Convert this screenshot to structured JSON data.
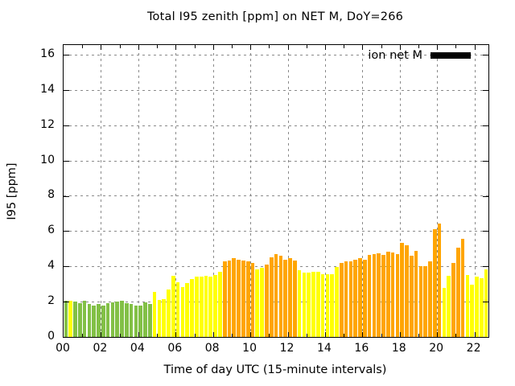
{
  "title": "Total I95 zenith [ppm] on NET M, DoY=266",
  "y_axis": {
    "label": "I95 [ppm]",
    "tick_labels": [
      "0",
      "2",
      "4",
      "6",
      "8",
      "10",
      "12",
      "14",
      "16"
    ]
  },
  "x_axis": {
    "label": "Time of day UTC (15-minute intervals)",
    "tick_labels": [
      "00",
      "02",
      "04",
      "06",
      "08",
      "10",
      "12",
      "14",
      "16",
      "18",
      "20",
      "22"
    ]
  },
  "legend": {
    "label": "ion net M",
    "swatch_color": "#000000",
    "position": "top-right"
  },
  "colors": {
    "green": "#82C046",
    "yellow": "#FFFF00",
    "orange": "#FFA500",
    "grid": "#8A8A8A",
    "frame": "#000000",
    "background": "#FFFFFF"
  },
  "chart_data": {
    "type": "bar",
    "title": "Total I95 zenith [ppm] on NET M, DoY=266",
    "xlabel": "Time of day UTC (15-minute intervals)",
    "ylabel": "I95 [ppm]",
    "ylim": [
      0,
      16.55
    ],
    "ytick_step": 2,
    "xtick_hours": [
      0,
      2,
      4,
      6,
      8,
      10,
      12,
      14,
      16,
      18,
      20,
      22
    ],
    "interval_minutes": 15,
    "grid": true,
    "legend_entries": [
      "ion net M"
    ],
    "points": [
      {
        "t": "00:00",
        "v": 2.05,
        "c": "green"
      },
      {
        "t": "00:15",
        "v": 2.05,
        "c": "yellow"
      },
      {
        "t": "00:30",
        "v": 2.0,
        "c": "green"
      },
      {
        "t": "00:45",
        "v": 1.9,
        "c": "green"
      },
      {
        "t": "01:00",
        "v": 2.05,
        "c": "green"
      },
      {
        "t": "01:15",
        "v": 1.85,
        "c": "green"
      },
      {
        "t": "01:30",
        "v": 1.8,
        "c": "green"
      },
      {
        "t": "01:45",
        "v": 1.85,
        "c": "green"
      },
      {
        "t": "02:00",
        "v": 1.8,
        "c": "green"
      },
      {
        "t": "02:15",
        "v": 1.9,
        "c": "green"
      },
      {
        "t": "02:30",
        "v": 1.95,
        "c": "green"
      },
      {
        "t": "02:45",
        "v": 2.0,
        "c": "green"
      },
      {
        "t": "03:00",
        "v": 2.05,
        "c": "green"
      },
      {
        "t": "03:15",
        "v": 1.9,
        "c": "green"
      },
      {
        "t": "03:30",
        "v": 1.85,
        "c": "green"
      },
      {
        "t": "03:45",
        "v": 1.8,
        "c": "green"
      },
      {
        "t": "04:00",
        "v": 1.8,
        "c": "green"
      },
      {
        "t": "04:15",
        "v": 1.95,
        "c": "green"
      },
      {
        "t": "04:30",
        "v": 1.85,
        "c": "green"
      },
      {
        "t": "04:45",
        "v": 2.55,
        "c": "yellow"
      },
      {
        "t": "05:00",
        "v": 2.1,
        "c": "yellow"
      },
      {
        "t": "05:15",
        "v": 2.15,
        "c": "yellow"
      },
      {
        "t": "05:30",
        "v": 2.7,
        "c": "yellow"
      },
      {
        "t": "05:45",
        "v": 3.45,
        "c": "yellow"
      },
      {
        "t": "06:00",
        "v": 3.1,
        "c": "yellow"
      },
      {
        "t": "06:15",
        "v": 2.85,
        "c": "yellow"
      },
      {
        "t": "06:30",
        "v": 3.05,
        "c": "yellow"
      },
      {
        "t": "06:45",
        "v": 3.3,
        "c": "yellow"
      },
      {
        "t": "07:00",
        "v": 3.4,
        "c": "yellow"
      },
      {
        "t": "07:15",
        "v": 3.4,
        "c": "yellow"
      },
      {
        "t": "07:30",
        "v": 3.45,
        "c": "yellow"
      },
      {
        "t": "07:45",
        "v": 3.4,
        "c": "yellow"
      },
      {
        "t": "08:00",
        "v": 3.5,
        "c": "yellow"
      },
      {
        "t": "08:15",
        "v": 3.7,
        "c": "yellow"
      },
      {
        "t": "08:30",
        "v": 4.3,
        "c": "orange"
      },
      {
        "t": "08:45",
        "v": 4.35,
        "c": "orange"
      },
      {
        "t": "09:00",
        "v": 4.45,
        "c": "orange"
      },
      {
        "t": "09:15",
        "v": 4.4,
        "c": "orange"
      },
      {
        "t": "09:30",
        "v": 4.35,
        "c": "orange"
      },
      {
        "t": "09:45",
        "v": 4.3,
        "c": "orange"
      },
      {
        "t": "10:00",
        "v": 4.2,
        "c": "orange"
      },
      {
        "t": "10:15",
        "v": 3.85,
        "c": "yellow"
      },
      {
        "t": "10:30",
        "v": 3.9,
        "c": "yellow"
      },
      {
        "t": "10:45",
        "v": 4.1,
        "c": "orange"
      },
      {
        "t": "11:00",
        "v": 4.5,
        "c": "orange"
      },
      {
        "t": "11:15",
        "v": 4.7,
        "c": "orange"
      },
      {
        "t": "11:30",
        "v": 4.6,
        "c": "orange"
      },
      {
        "t": "11:45",
        "v": 4.4,
        "c": "orange"
      },
      {
        "t": "12:00",
        "v": 4.45,
        "c": "orange"
      },
      {
        "t": "12:15",
        "v": 4.35,
        "c": "orange"
      },
      {
        "t": "12:30",
        "v": 3.8,
        "c": "yellow"
      },
      {
        "t": "12:45",
        "v": 3.65,
        "c": "yellow"
      },
      {
        "t": "13:00",
        "v": 3.65,
        "c": "yellow"
      },
      {
        "t": "13:15",
        "v": 3.7,
        "c": "yellow"
      },
      {
        "t": "13:30",
        "v": 3.7,
        "c": "yellow"
      },
      {
        "t": "13:45",
        "v": 3.55,
        "c": "yellow"
      },
      {
        "t": "14:00",
        "v": 3.55,
        "c": "yellow"
      },
      {
        "t": "14:15",
        "v": 3.55,
        "c": "yellow"
      },
      {
        "t": "14:30",
        "v": 3.95,
        "c": "yellow"
      },
      {
        "t": "14:45",
        "v": 4.2,
        "c": "orange"
      },
      {
        "t": "15:00",
        "v": 4.3,
        "c": "orange"
      },
      {
        "t": "15:15",
        "v": 4.3,
        "c": "orange"
      },
      {
        "t": "15:30",
        "v": 4.4,
        "c": "orange"
      },
      {
        "t": "15:45",
        "v": 4.45,
        "c": "orange"
      },
      {
        "t": "16:00",
        "v": 4.4,
        "c": "orange"
      },
      {
        "t": "16:15",
        "v": 4.65,
        "c": "orange"
      },
      {
        "t": "16:30",
        "v": 4.7,
        "c": "orange"
      },
      {
        "t": "16:45",
        "v": 4.75,
        "c": "orange"
      },
      {
        "t": "17:00",
        "v": 4.65,
        "c": "orange"
      },
      {
        "t": "17:15",
        "v": 4.85,
        "c": "orange"
      },
      {
        "t": "17:30",
        "v": 4.8,
        "c": "orange"
      },
      {
        "t": "17:45",
        "v": 4.7,
        "c": "orange"
      },
      {
        "t": "18:00",
        "v": 5.35,
        "c": "orange"
      },
      {
        "t": "18:15",
        "v": 5.2,
        "c": "orange"
      },
      {
        "t": "18:30",
        "v": 4.6,
        "c": "orange"
      },
      {
        "t": "18:45",
        "v": 4.9,
        "c": "orange"
      },
      {
        "t": "19:00",
        "v": 4.0,
        "c": "orange"
      },
      {
        "t": "19:15",
        "v": 4.0,
        "c": "orange"
      },
      {
        "t": "19:30",
        "v": 4.3,
        "c": "orange"
      },
      {
        "t": "19:45",
        "v": 6.1,
        "c": "orange"
      },
      {
        "t": "20:00",
        "v": 6.45,
        "c": "orange"
      },
      {
        "t": "20:15",
        "v": 2.8,
        "c": "yellow"
      },
      {
        "t": "20:30",
        "v": 3.45,
        "c": "yellow"
      },
      {
        "t": "20:45",
        "v": 4.2,
        "c": "orange"
      },
      {
        "t": "21:00",
        "v": 5.05,
        "c": "orange"
      },
      {
        "t": "21:15",
        "v": 5.55,
        "c": "orange"
      },
      {
        "t": "21:30",
        "v": 3.5,
        "c": "yellow"
      },
      {
        "t": "21:45",
        "v": 2.95,
        "c": "yellow"
      },
      {
        "t": "22:00",
        "v": 3.4,
        "c": "yellow"
      },
      {
        "t": "22:15",
        "v": 3.35,
        "c": "yellow"
      },
      {
        "t": "22:30",
        "v": 3.85,
        "c": "yellow"
      }
    ]
  }
}
